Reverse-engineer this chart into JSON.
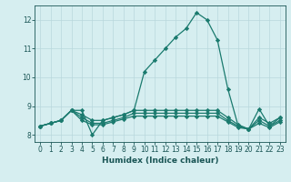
{
  "xlabel": "Humidex (Indice chaleur)",
  "background_color": "#d6eef0",
  "line_color": "#1a7a6e",
  "x_data": [
    0,
    1,
    2,
    3,
    4,
    5,
    6,
    7,
    8,
    9,
    10,
    11,
    12,
    13,
    14,
    15,
    16,
    17,
    18,
    19,
    20,
    21,
    22,
    23
  ],
  "lines": [
    [
      8.3,
      8.4,
      8.5,
      8.85,
      8.85,
      8.0,
      8.5,
      8.6,
      8.7,
      8.85,
      10.2,
      10.6,
      11.0,
      11.4,
      11.7,
      12.25,
      12.0,
      11.3,
      9.6,
      8.3,
      8.2,
      8.9,
      8.3,
      8.6
    ],
    [
      8.3,
      8.4,
      8.5,
      8.85,
      8.7,
      8.5,
      8.5,
      8.6,
      8.7,
      8.85,
      8.85,
      8.85,
      8.85,
      8.85,
      8.85,
      8.85,
      8.85,
      8.85,
      8.6,
      8.35,
      8.2,
      8.6,
      8.4,
      8.6
    ],
    [
      8.3,
      8.4,
      8.5,
      8.85,
      8.6,
      8.4,
      8.4,
      8.5,
      8.6,
      8.75,
      8.75,
      8.75,
      8.75,
      8.75,
      8.75,
      8.75,
      8.75,
      8.75,
      8.5,
      8.3,
      8.2,
      8.5,
      8.3,
      8.5
    ],
    [
      8.3,
      8.4,
      8.5,
      8.85,
      8.5,
      8.35,
      8.35,
      8.45,
      8.55,
      8.65,
      8.65,
      8.65,
      8.65,
      8.65,
      8.65,
      8.65,
      8.65,
      8.65,
      8.45,
      8.25,
      8.2,
      8.4,
      8.25,
      8.45
    ]
  ],
  "ylim": [
    7.75,
    12.5
  ],
  "xlim": [
    -0.5,
    23.5
  ],
  "yticks": [
    8,
    9,
    10,
    11,
    12
  ],
  "xticks": [
    0,
    1,
    2,
    3,
    4,
    5,
    6,
    7,
    8,
    9,
    10,
    11,
    12,
    13,
    14,
    15,
    16,
    17,
    18,
    19,
    20,
    21,
    22,
    23
  ],
  "grid_color": "#b8d8dc",
  "marker": "D",
  "marker_size": 2.2,
  "linewidth": 0.9,
  "font_color": "#1a5555",
  "tick_fontsize": 5.5,
  "label_fontsize": 6.5
}
